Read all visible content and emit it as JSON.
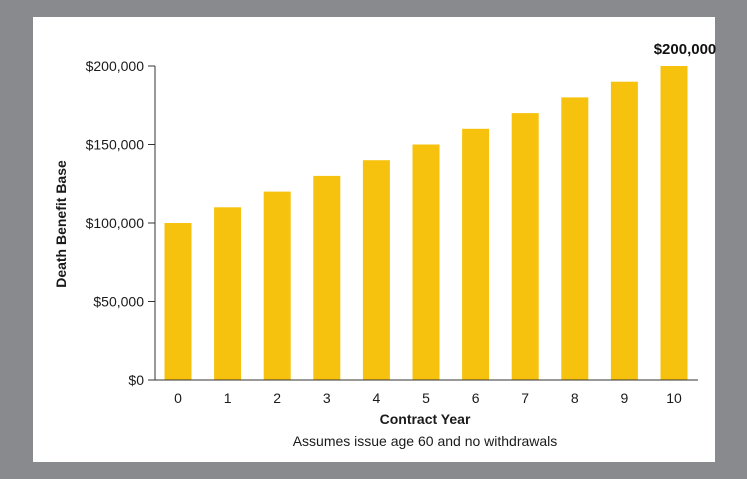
{
  "chart_data": {
    "type": "bar",
    "categories": [
      "0",
      "1",
      "2",
      "3",
      "4",
      "5",
      "6",
      "7",
      "8",
      "9",
      "10"
    ],
    "values": [
      100000,
      110000,
      120000,
      130000,
      140000,
      150000,
      160000,
      170000,
      180000,
      190000,
      200000
    ],
    "title": "",
    "xlabel": "Contract Year",
    "ylabel": "Death Benefit Base",
    "ylim": [
      0,
      200000
    ],
    "yticks": [
      {
        "value": 0,
        "label": "$0"
      },
      {
        "value": 50000,
        "label": "$50,000"
      },
      {
        "value": 100000,
        "label": "$100,000"
      },
      {
        "value": 150000,
        "label": "$150,000"
      },
      {
        "value": 200000,
        "label": "$200,000"
      }
    ],
    "annotations": [
      {
        "category": "10",
        "text": "$200,000"
      }
    ],
    "note": "Assumes issue age 60 and no withdrawals",
    "grid": false,
    "colors": {
      "bar": "#f7c20e",
      "axis": "#333333",
      "frame": "#898a8d",
      "background": "#ffffff"
    }
  }
}
